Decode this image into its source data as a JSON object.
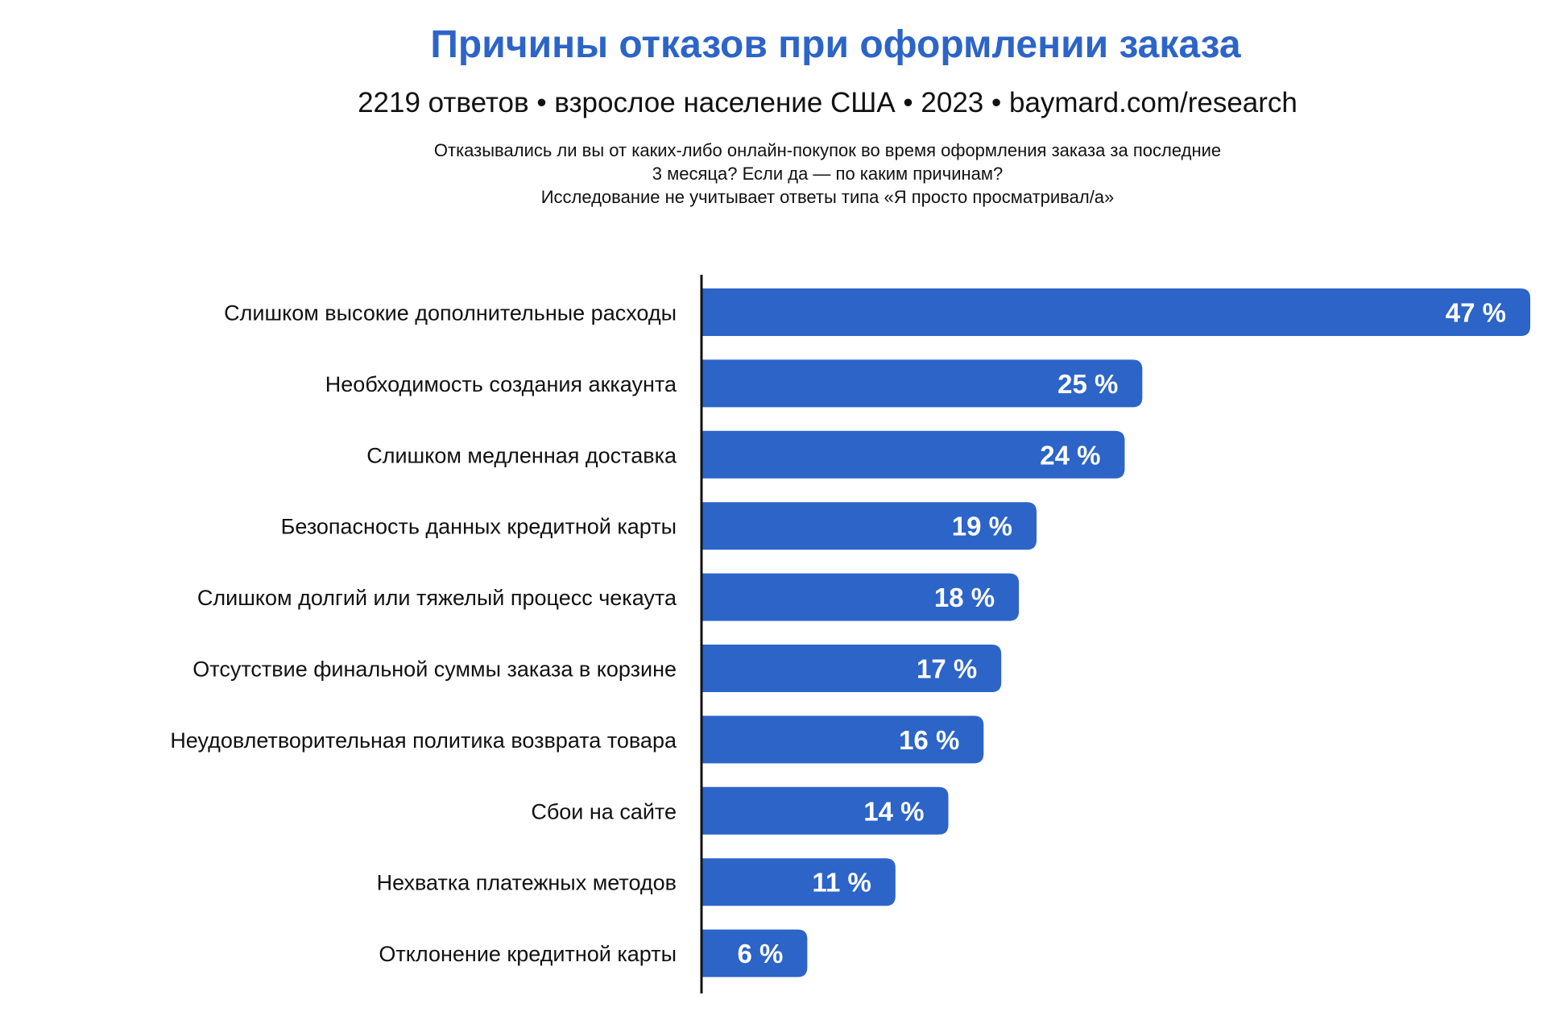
{
  "chart_data": {
    "type": "bar",
    "orientation": "horizontal",
    "title": "Причины отказов при оформлении заказа",
    "subtitle": "2219 ответов • взрослое население США • 2023 • baymard.com/research",
    "question": [
      "Отказывались ли вы от каких-либо онлайн-покупок во время оформления заказа за последние",
      "3 месяца? Если да — по каким причинам?",
      "Исследование не учитывает ответы типа «Я просто просматривал/а»"
    ],
    "categories": [
      "Слишком высокие дополнительные расходы",
      "Необходимость создания аккаунта",
      "Слишком медленная доставка",
      "Безопасность данных кредитной карты",
      "Слишком долгий или тяжелый процесс чекаута",
      "Отсутствие финальной суммы заказа в корзине",
      "Неудовлетворительная политика возврата товара",
      "Сбои на сайте",
      "Нехватка платежных методов",
      "Отклонение кредитной карты"
    ],
    "values": [
      47,
      25,
      24,
      19,
      18,
      17,
      16,
      14,
      11,
      6
    ],
    "data_labels": [
      "47 %",
      "25 %",
      "24 %",
      "19 %",
      "18 %",
      "17 %",
      "16 %",
      "14 %",
      "11 %",
      "6 %"
    ],
    "xlim": [
      0,
      47
    ],
    "xlabel": "",
    "ylabel": "",
    "grid": false,
    "bar_color": "#2c64c8",
    "title_color": "#2c64c8"
  }
}
